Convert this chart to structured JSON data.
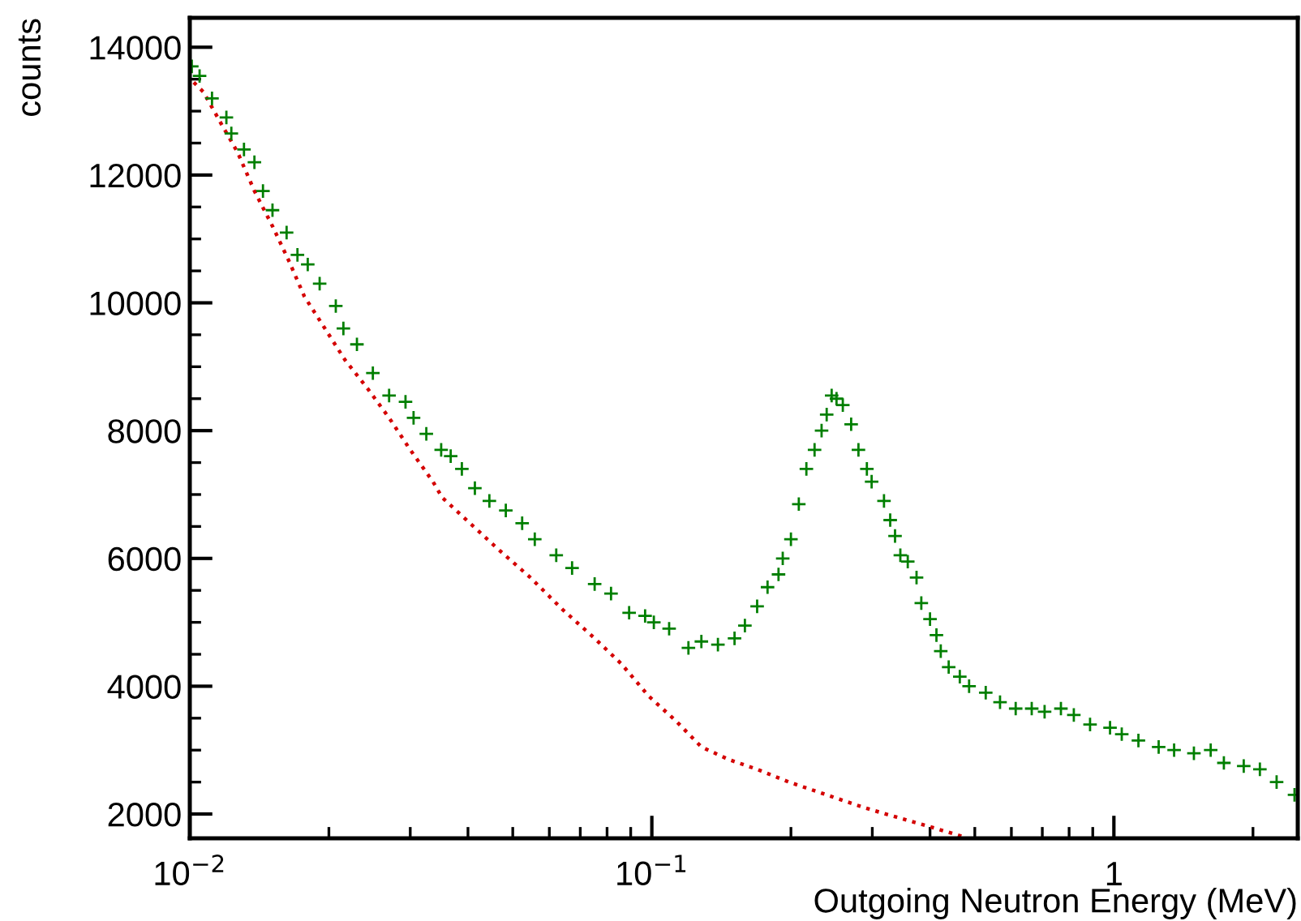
{
  "chart_data": {
    "type": "scatter",
    "xlabel": "Outgoing Neutron Energy (MeV)",
    "ylabel": "counts",
    "log": "x",
    "grid": false,
    "xlim": [
      0.01,
      2.5
    ],
    "ylim": [
      1620,
      14460
    ],
    "xticks": [
      {
        "value": 0.01,
        "label": "10$^{−2}$"
      },
      {
        "value": 0.02,
        "label": null
      },
      {
        "value": 0.03,
        "label": null
      },
      {
        "value": 0.04,
        "label": null
      },
      {
        "value": 0.05,
        "label": null
      },
      {
        "value": 0.06,
        "label": null
      },
      {
        "value": 0.07,
        "label": null
      },
      {
        "value": 0.08,
        "label": null
      },
      {
        "value": 0.09,
        "label": null
      },
      {
        "value": 0.1,
        "label": "10$^{−1}$"
      },
      {
        "value": 0.2,
        "label": null
      },
      {
        "value": 0.3,
        "label": null
      },
      {
        "value": 0.4,
        "label": null
      },
      {
        "value": 0.5,
        "label": null
      },
      {
        "value": 0.6,
        "label": null
      },
      {
        "value": 0.7,
        "label": null
      },
      {
        "value": 0.8,
        "label": null
      },
      {
        "value": 0.9,
        "label": null
      },
      1,
      {
        "value": 2,
        "label": null
      }
    ],
    "yticks": [
      2000,
      {
        "value": 2500,
        "label": null
      },
      {
        "value": 3000,
        "label": null
      },
      {
        "value": 3500,
        "label": null
      },
      4000,
      {
        "value": 4500,
        "label": null
      },
      {
        "value": 5000,
        "label": null
      },
      {
        "value": 5500,
        "label": null
      },
      6000,
      {
        "value": 6500,
        "label": null
      },
      {
        "value": 7000,
        "label": null
      },
      {
        "value": 7500,
        "label": null
      },
      8000,
      {
        "value": 8500,
        "label": null
      },
      {
        "value": 9000,
        "label": null
      },
      {
        "value": 9500,
        "label": null
      },
      10000,
      {
        "value": 10500,
        "label": null
      },
      {
        "value": 11000,
        "label": null
      },
      {
        "value": 11500,
        "label": null
      },
      12000,
      {
        "value": 12500,
        "label": null
      },
      {
        "value": 13000,
        "label": null
      },
      {
        "value": 13500,
        "label": null
      },
      14000
    ],
    "series": [
      {
        "type": "line",
        "line_style": "dotted",
        "marker": "none",
        "color": "#d40000",
        "x": [
          0.0102,
          0.0107,
          0.0117,
          0.0127,
          0.0138,
          0.0151,
          0.0164,
          0.0177,
          0.0196,
          0.0217,
          0.0243,
          0.027,
          0.03,
          0.0336,
          0.0352,
          0.0404,
          0.0464,
          0.0546,
          0.0641,
          0.0752,
          0.0859,
          0.0983,
          0.113,
          0.128,
          0.147,
          0.169,
          0.198,
          0.239,
          0.288,
          0.339,
          0.4,
          0.47
        ],
        "values": [
          13450,
          13300,
          12800,
          12350,
          11750,
          11200,
          10650,
          10100,
          9600,
          9100,
          8650,
          8200,
          7700,
          7200,
          6950,
          6550,
          6150,
          5700,
          5200,
          4750,
          4350,
          3850,
          3450,
          3050,
          2850,
          2700,
          2500,
          2300,
          2100,
          1950,
          1800,
          1650
        ]
      },
      {
        "marker": "cross",
        "color": "#007f00",
        "x": [
          0.0101,
          0.0105,
          0.01117,
          0.012,
          0.0123,
          0.0131,
          0.0138,
          0.0144,
          0.0151,
          0.0162,
          0.0171,
          0.018,
          0.0191,
          0.0207,
          0.0215,
          0.023,
          0.0249,
          0.027,
          0.0293,
          0.0305,
          0.0325,
          0.035,
          0.0367,
          0.0388,
          0.0414,
          0.0445,
          0.0483,
          0.0524,
          0.0558,
          0.0621,
          0.0672,
          0.0752,
          0.0816,
          0.0893,
          0.0967,
          0.101,
          0.109,
          0.12,
          0.128,
          0.139,
          0.151,
          0.159,
          0.169,
          0.178,
          0.188,
          0.192,
          0.2,
          0.208,
          0.216,
          0.225,
          0.233,
          0.239,
          0.245,
          0.251,
          0.259,
          0.27,
          0.28,
          0.292,
          0.299,
          0.318,
          0.328,
          0.336,
          0.345,
          0.358,
          0.374,
          0.383,
          0.4,
          0.413,
          0.422,
          0.439,
          0.464,
          0.486,
          0.528,
          0.567,
          0.613,
          0.664,
          0.708,
          0.768,
          0.819,
          0.888,
          0.981,
          1.04,
          1.13,
          1.25,
          1.35,
          1.49,
          1.62,
          1.73,
          1.91,
          2.07,
          2.25,
          2.46
        ],
        "values": [
          13700,
          13550,
          13200,
          12900,
          12650,
          12400,
          12200,
          11750,
          11450,
          11100,
          10750,
          10600,
          10300,
          9950,
          9600,
          9350,
          8900,
          8550,
          8450,
          8200,
          7950,
          7700,
          7600,
          7400,
          7100,
          6900,
          6750,
          6550,
          6300,
          6050,
          5850,
          5600,
          5450,
          5150,
          5100,
          5000,
          4900,
          4600,
          4700,
          4650,
          4750,
          4950,
          5250,
          5550,
          5750,
          6000,
          6300,
          6850,
          7400,
          7700,
          8000,
          8250,
          8550,
          8500,
          8400,
          8100,
          7700,
          7400,
          7200,
          6900,
          6600,
          6350,
          6050,
          5950,
          5700,
          5300,
          5050,
          4800,
          4550,
          4300,
          4150,
          4000,
          3900,
          3750,
          3650,
          3650,
          3600,
          3650,
          3550,
          3400,
          3350,
          3250,
          3150,
          3050,
          3000,
          2950,
          3000,
          2800,
          2750,
          2700,
          2500,
          2300
        ]
      }
    ]
  }
}
